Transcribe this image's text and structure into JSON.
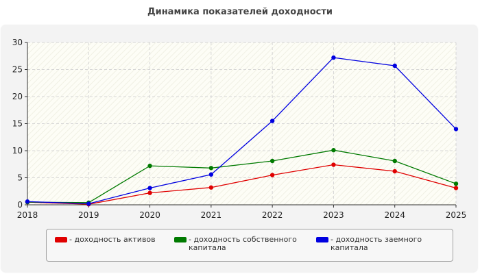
{
  "title": "Динамика показателей доходности",
  "chart_data": {
    "type": "line",
    "x": [
      "2018",
      "2019",
      "2020",
      "2021",
      "2022",
      "2023",
      "2024",
      "2025"
    ],
    "ylim": [
      0,
      30
    ],
    "yticks": [
      0,
      5,
      10,
      15,
      20,
      25,
      30
    ],
    "grid": true,
    "legend_position": "bottom",
    "series": [
      {
        "name": "- доходность активов",
        "color": "#e00000",
        "values": [
          0.5,
          0.1,
          2.2,
          3.2,
          5.5,
          7.4,
          6.2,
          3.1
        ]
      },
      {
        "name": "- доходность собственного капитала",
        "color": "#007a00",
        "values": [
          0.5,
          0.4,
          7.2,
          6.8,
          8.1,
          10.1,
          8.1,
          3.9
        ]
      },
      {
        "name": "- доходность заемного капитала",
        "color": "#0000e0",
        "values": [
          0.6,
          0.2,
          3.1,
          5.6,
          15.5,
          27.2,
          25.7,
          14.0
        ]
      }
    ]
  }
}
